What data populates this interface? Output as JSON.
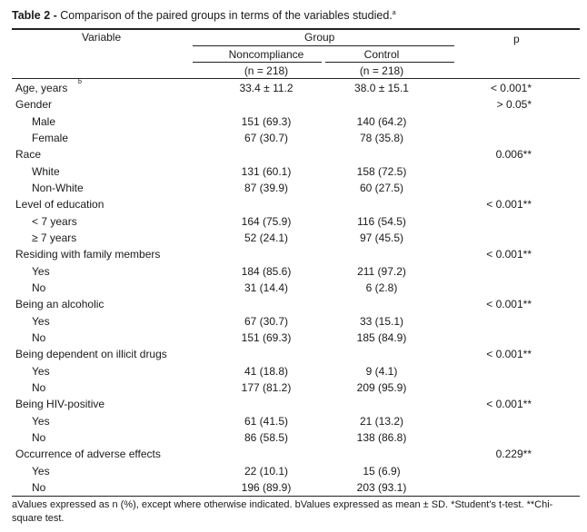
{
  "title": {
    "label": "Table 2 -",
    "text": "Comparison of the paired groups in terms of the variables studied.",
    "sup": "a"
  },
  "header": {
    "variable": "Variable",
    "group": "Group",
    "p": "p",
    "noncompliance": "Noncompliance",
    "control": "Control",
    "n_noncompliance": "(n = 218)",
    "n_control": "(n = 218)"
  },
  "rows": [
    {
      "label": "Age, years",
      "sup": "b",
      "indent": false,
      "nc": "33.4 ± 11.2",
      "ct": "38.0 ± 15.1",
      "p": "< 0.001*"
    },
    {
      "label": "Gender",
      "indent": false,
      "nc": "",
      "ct": "",
      "p": "> 0.05*"
    },
    {
      "label": "Male",
      "indent": true,
      "nc": "151 (69.3)",
      "ct": "140 (64.2)",
      "p": ""
    },
    {
      "label": "Female",
      "indent": true,
      "nc": "67 (30.7)",
      "ct": "78 (35.8)",
      "p": ""
    },
    {
      "label": "Race",
      "indent": false,
      "nc": "",
      "ct": "",
      "p": "0.006**"
    },
    {
      "label": "White",
      "indent": true,
      "nc": "131 (60.1)",
      "ct": "158 (72.5)",
      "p": ""
    },
    {
      "label": "Non-White",
      "indent": true,
      "nc": "87 (39.9)",
      "ct": "60 (27.5)",
      "p": ""
    },
    {
      "label": "Level of education",
      "indent": false,
      "nc": "",
      "ct": "",
      "p": "< 0.001**"
    },
    {
      "label": "< 7 years",
      "indent": true,
      "nc": "164 (75.9)",
      "ct": "116 (54.5)",
      "p": ""
    },
    {
      "label": "≥ 7 years",
      "indent": true,
      "nc": "52 (24.1)",
      "ct": "97 (45.5)",
      "p": ""
    },
    {
      "label": "Residing with family members",
      "indent": false,
      "nc": "",
      "ct": "",
      "p": "< 0.001**"
    },
    {
      "label": "Yes",
      "indent": true,
      "nc": "184 (85.6)",
      "ct": "211 (97.2)",
      "p": ""
    },
    {
      "label": "No",
      "indent": true,
      "nc": "31 (14.4)",
      "ct": "6 (2.8)",
      "p": ""
    },
    {
      "label": "Being an alcoholic",
      "indent": false,
      "nc": "",
      "ct": "",
      "p": "< 0.001**"
    },
    {
      "label": "Yes",
      "indent": true,
      "nc": "67 (30.7)",
      "ct": "33 (15.1)",
      "p": ""
    },
    {
      "label": "No",
      "indent": true,
      "nc": "151 (69.3)",
      "ct": "185 (84.9)",
      "p": ""
    },
    {
      "label": "Being dependent on illicit drugs",
      "indent": false,
      "nc": "",
      "ct": "",
      "p": "< 0.001**"
    },
    {
      "label": "Yes",
      "indent": true,
      "nc": "41 (18.8)",
      "ct": "9 (4.1)",
      "p": ""
    },
    {
      "label": "No",
      "indent": true,
      "nc": "177 (81.2)",
      "ct": "209 (95.9)",
      "p": ""
    },
    {
      "label": "Being HIV-positive",
      "indent": false,
      "nc": "",
      "ct": "",
      "p": "< 0.001**"
    },
    {
      "label": "Yes",
      "indent": true,
      "nc": "61 (41.5)",
      "ct": "21 (13.2)",
      "p": ""
    },
    {
      "label": "No",
      "indent": true,
      "nc": "86 (58.5)",
      "ct": "138 (86.8)",
      "p": ""
    },
    {
      "label": "Occurrence of adverse effects",
      "indent": false,
      "nc": "",
      "ct": "",
      "p": "0.229**"
    },
    {
      "label": "Yes",
      "indent": true,
      "nc": "22 (10.1)",
      "ct": "15 (6.9)",
      "p": ""
    },
    {
      "label": "No",
      "indent": true,
      "nc": "196 (89.9)",
      "ct": "203 (93.1)",
      "p": ""
    }
  ],
  "footnote": "aValues expressed as n (%), except where otherwise indicated. bValues expressed as mean ± SD. *Student's t-test. **Chi-square test."
}
